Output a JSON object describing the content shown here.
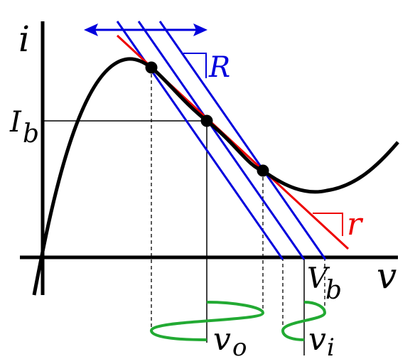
{
  "axes": {
    "y_label": "i",
    "x_label": "v"
  },
  "bias_current": {
    "main": "I",
    "sub": "b"
  },
  "bias_voltage": {
    "main": "V",
    "sub": "b"
  },
  "load_line_label": "R",
  "tangent_label": "r",
  "output": {
    "main": "v",
    "sub": "o"
  },
  "input": {
    "main": "v",
    "sub": "i"
  }
}
